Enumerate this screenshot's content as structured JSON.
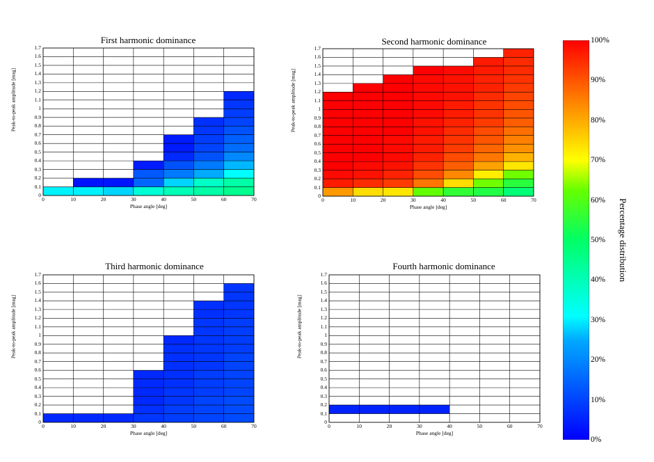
{
  "chart_data": [
    {
      "type": "heatmap",
      "title": "First harmonic dominance",
      "xlabel": "Phase angle [deg]",
      "ylabel": "Peak-to-peak amplitude [mag]",
      "xlim": [
        0,
        70
      ],
      "ylim": [
        0,
        1.7
      ],
      "x_ticks": [
        "0",
        "10",
        "20",
        "30",
        "40",
        "50",
        "60",
        "70"
      ],
      "y_ticks": [
        "0",
        "0.1",
        "0.2",
        "0.3",
        "0.4",
        "0.5",
        "0.6",
        "0.7",
        "0.8",
        "0.9",
        "1",
        "1.1",
        "1.2",
        "1.3",
        "1.4",
        "1.5",
        "1.6",
        "1.7"
      ],
      "x_bin_starts": [
        0,
        10,
        20,
        30,
        40,
        50,
        60
      ],
      "y_bin_starts": [
        0,
        0.1,
        0.2,
        0.3,
        0.4,
        0.5,
        0.6,
        0.7,
        0.8,
        0.9,
        1.0,
        1.1,
        1.2,
        1.3,
        1.4,
        1.5,
        1.6
      ],
      "values": [
        [
          30,
          30,
          28,
          36,
          40,
          42,
          45
        ],
        [
          null,
          3,
          3,
          15,
          28,
          38,
          42
        ],
        [
          null,
          null,
          null,
          13,
          18,
          25,
          31
        ],
        [
          null,
          null,
          null,
          4,
          12,
          18,
          26
        ],
        [
          null,
          null,
          null,
          null,
          6,
          12,
          20
        ],
        [
          null,
          null,
          null,
          null,
          4,
          10,
          16
        ],
        [
          null,
          null,
          null,
          null,
          4,
          9,
          14
        ],
        [
          null,
          null,
          null,
          null,
          null,
          8,
          12
        ],
        [
          null,
          null,
          null,
          null,
          null,
          7,
          10
        ],
        [
          null,
          null,
          null,
          null,
          null,
          null,
          9
        ],
        [
          null,
          null,
          null,
          null,
          null,
          null,
          8
        ],
        [
          null,
          null,
          null,
          null,
          null,
          null,
          6
        ],
        [
          null,
          null,
          null,
          null,
          null,
          null,
          null
        ],
        [
          null,
          null,
          null,
          null,
          null,
          null,
          null
        ],
        [
          null,
          null,
          null,
          null,
          null,
          null,
          null
        ],
        [
          null,
          null,
          null,
          null,
          null,
          null,
          null
        ],
        [
          null,
          null,
          null,
          null,
          null,
          null,
          null
        ]
      ]
    },
    {
      "type": "heatmap",
      "title": "Second harmonic dominance",
      "xlabel": "Phase angle [deg]",
      "ylabel": "Peak-to-peak amplitude [mag]",
      "xlim": [
        0,
        70
      ],
      "ylim": [
        0,
        1.7
      ],
      "x_ticks": [
        "0",
        "10",
        "20",
        "30",
        "40",
        "50",
        "60",
        "70"
      ],
      "y_ticks": [
        "0",
        "0.1",
        "0.2",
        "0.3",
        "0.4",
        "0.5",
        "0.6",
        "0.7",
        "0.8",
        "0.9",
        "1",
        "1.1",
        "1.2",
        "1.3",
        "1.4",
        "1.5",
        "1.6",
        "1.7"
      ],
      "x_bin_starts": [
        0,
        10,
        20,
        30,
        40,
        50,
        60
      ],
      "y_bin_starts": [
        0,
        0.1,
        0.2,
        0.3,
        0.4,
        0.5,
        0.6,
        0.7,
        0.8,
        0.9,
        1.0,
        1.1,
        1.2,
        1.3,
        1.4,
        1.5,
        1.6
      ],
      "values": [
        [
          82,
          74,
          73,
          62,
          56,
          54,
          48
        ],
        [
          97,
          95,
          93,
          86,
          74,
          63,
          55
        ],
        [
          99,
          98,
          96,
          91,
          84,
          72,
          63
        ],
        [
          100,
          99,
          98,
          94,
          89,
          81,
          73
        ],
        [
          100,
          100,
          99,
          96,
          91,
          86,
          79
        ],
        [
          100,
          100,
          99,
          97,
          93,
          88,
          83
        ],
        [
          100,
          100,
          99,
          97,
          94,
          90,
          85
        ],
        [
          100,
          100,
          100,
          98,
          95,
          91,
          87
        ],
        [
          100,
          100,
          100,
          98,
          96,
          93,
          89
        ],
        [
          100,
          100,
          100,
          99,
          97,
          94,
          90
        ],
        [
          100,
          100,
          100,
          99,
          97,
          94,
          91
        ],
        [
          100,
          100,
          100,
          99,
          98,
          95,
          92
        ],
        [
          null,
          100,
          100,
          99,
          98,
          96,
          93
        ],
        [
          null,
          null,
          100,
          99,
          98,
          96,
          94
        ],
        [
          null,
          null,
          null,
          100,
          99,
          97,
          95
        ],
        [
          null,
          null,
          null,
          null,
          null,
          97,
          95
        ],
        [
          null,
          null,
          null,
          null,
          null,
          null,
          96
        ]
      ]
    },
    {
      "type": "heatmap",
      "title": "Third harmonic dominance",
      "xlabel": "Phase angle [deg]",
      "ylabel": "Peak-to-peak amplitude [mag]",
      "xlim": [
        0,
        70
      ],
      "ylim": [
        0,
        1.7
      ],
      "x_ticks": [
        "0",
        "10",
        "20",
        "30",
        "40",
        "50",
        "60",
        "70"
      ],
      "y_ticks": [
        "0",
        "0.1",
        "0.2",
        "0.3",
        "0.4",
        "0.5",
        "0.6",
        "0.7",
        "0.8",
        "0.9",
        "1",
        "1.1",
        "1.2",
        "1.3",
        "1.4",
        "1.5",
        "1.6",
        "1.7"
      ],
      "x_bin_starts": [
        0,
        10,
        20,
        30,
        40,
        50,
        60
      ],
      "y_bin_starts": [
        0,
        0.1,
        0.2,
        0.3,
        0.4,
        0.5,
        0.6,
        0.7,
        0.8,
        0.9,
        1.0,
        1.1,
        1.2,
        1.3,
        1.4,
        1.5,
        1.6
      ],
      "values": [
        [
          6,
          6,
          6,
          8,
          9,
          10,
          11
        ],
        [
          null,
          null,
          null,
          7,
          9,
          10,
          11
        ],
        [
          null,
          null,
          null,
          6,
          8,
          10,
          11
        ],
        [
          null,
          null,
          null,
          6,
          8,
          9,
          10
        ],
        [
          null,
          null,
          null,
          6,
          7,
          9,
          10
        ],
        [
          null,
          null,
          null,
          6,
          7,
          9,
          10
        ],
        [
          null,
          null,
          null,
          null,
          7,
          8,
          10
        ],
        [
          null,
          null,
          null,
          null,
          7,
          8,
          10
        ],
        [
          null,
          null,
          null,
          null,
          7,
          8,
          9
        ],
        [
          null,
          null,
          null,
          null,
          6,
          8,
          9
        ],
        [
          null,
          null,
          null,
          null,
          null,
          8,
          9
        ],
        [
          null,
          null,
          null,
          null,
          null,
          8,
          9
        ],
        [
          null,
          null,
          null,
          null,
          null,
          7,
          8
        ],
        [
          null,
          null,
          null,
          null,
          null,
          7,
          8
        ],
        [
          null,
          null,
          null,
          null,
          null,
          null,
          8
        ],
        [
          null,
          null,
          null,
          null,
          null,
          null,
          8
        ],
        [
          null,
          null,
          null,
          null,
          null,
          null,
          null
        ]
      ]
    },
    {
      "type": "heatmap",
      "title": "Fourth harmonic dominance",
      "xlabel": "Phase angle [deg]",
      "ylabel": "Peak-to-peak amplitude [mag]",
      "xlim": [
        0,
        70
      ],
      "ylim": [
        0,
        1.7
      ],
      "x_ticks": [
        "0",
        "10",
        "20",
        "30",
        "40",
        "50",
        "60",
        "70"
      ],
      "y_ticks": [
        "0",
        "0.1",
        "0.2",
        "0.3",
        "0.4",
        "0.5",
        "0.6",
        "0.7",
        "0.8",
        "0.9",
        "1",
        "1.1",
        "1.2",
        "1.3",
        "1.4",
        "1.5",
        "1.6",
        "1.7"
      ],
      "x_bin_starts": [
        0,
        10,
        20,
        30,
        40,
        50,
        60
      ],
      "y_bin_starts": [
        0,
        0.1,
        0.2,
        0.3,
        0.4,
        0.5,
        0.6,
        0.7,
        0.8,
        0.9,
        1.0,
        1.1,
        1.2,
        1.3,
        1.4,
        1.5,
        1.6
      ],
      "values": [
        [
          null,
          null,
          null,
          null,
          null,
          null,
          null
        ],
        [
          5,
          5,
          5,
          5,
          null,
          null,
          null
        ],
        [
          null,
          null,
          null,
          null,
          null,
          null,
          null
        ],
        [
          null,
          null,
          null,
          null,
          null,
          null,
          null
        ],
        [
          null,
          null,
          null,
          null,
          null,
          null,
          null
        ],
        [
          null,
          null,
          null,
          null,
          null,
          null,
          null
        ],
        [
          null,
          null,
          null,
          null,
          null,
          null,
          null
        ],
        [
          null,
          null,
          null,
          null,
          null,
          null,
          null
        ],
        [
          null,
          null,
          null,
          null,
          null,
          null,
          null
        ],
        [
          null,
          null,
          null,
          null,
          null,
          null,
          null
        ],
        [
          null,
          null,
          null,
          null,
          null,
          null,
          null
        ],
        [
          null,
          null,
          null,
          null,
          null,
          null,
          null
        ],
        [
          null,
          null,
          null,
          null,
          null,
          null,
          null
        ],
        [
          null,
          null,
          null,
          null,
          null,
          null,
          null
        ],
        [
          null,
          null,
          null,
          null,
          null,
          null,
          null
        ],
        [
          null,
          null,
          null,
          null,
          null,
          null,
          null
        ],
        [
          null,
          null,
          null,
          null,
          null,
          null,
          null
        ]
      ]
    }
  ],
  "colorbar": {
    "label": "Percentage distribution",
    "colormap": "jet",
    "range": [
      0,
      100
    ],
    "ticks": [
      "0%",
      "10%",
      "20%",
      "30%",
      "40%",
      "50%",
      "60%",
      "70%",
      "80%",
      "90%",
      "100%"
    ],
    "low_color": "#0000ff",
    "high_color": "#ff0000"
  }
}
